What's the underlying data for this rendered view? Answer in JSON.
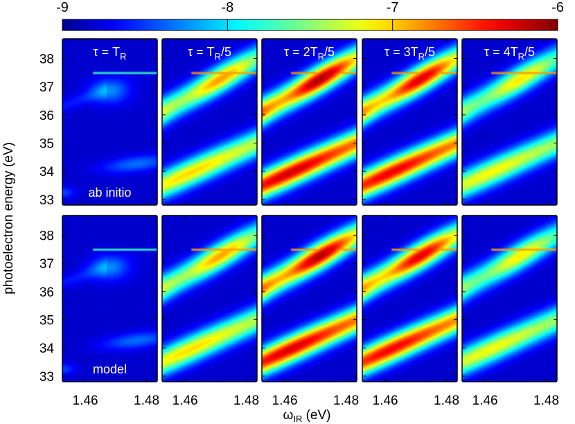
{
  "chart_data": {
    "type": "heatmap",
    "title": "",
    "xlabel_main": "ω",
    "xlabel_sub": "IR",
    "xlabel_unit": " (eV)",
    "ylabel": "photoelectron energy (eV)",
    "xlim": [
      1.4525,
      1.4835
    ],
    "ylim": [
      32.8,
      38.7
    ],
    "xticks": [
      1.46,
      1.48
    ],
    "xtick_labels": [
      "1.46",
      "1.48"
    ],
    "yticks": [
      33,
      34,
      35,
      36,
      37,
      38
    ],
    "ytick_labels": [
      "33",
      "34",
      "35",
      "36",
      "37",
      "38"
    ],
    "colorbar": {
      "range": [
        -9,
        -6
      ],
      "ticks": [
        -9,
        -8,
        -7,
        -6
      ],
      "tick_labels": [
        "-9",
        "-8",
        "-7",
        "-6"
      ],
      "colormap": "jet",
      "stops": [
        "#00008f",
        "#0000ff",
        "#00ffff",
        "#ffff00",
        "#ff0000",
        "#800000"
      ]
    },
    "row_labels": [
      "ab initio",
      "model"
    ],
    "columns": [
      {
        "title_pre": "τ = ",
        "title_main": "T",
        "title_sub": "R",
        "title_post": "",
        "intensity": 0.25,
        "lower_band_intensity": 0.18
      },
      {
        "title_pre": "τ = ",
        "title_main": "T",
        "title_sub": "R",
        "title_post": "/5",
        "intensity": 0.62,
        "lower_band_intensity": 0.6
      },
      {
        "title_pre": "τ = 2",
        "title_main": "T",
        "title_sub": "R",
        "title_post": "/5",
        "intensity": 0.85,
        "lower_band_intensity": 0.86
      },
      {
        "title_pre": "τ = 3",
        "title_main": "T",
        "title_sub": "R",
        "title_post": "/5",
        "intensity": 0.8,
        "lower_band_intensity": 0.83
      },
      {
        "title_pre": "τ = 4",
        "title_main": "T",
        "title_sub": "R",
        "title_post": "/5",
        "intensity": 0.55,
        "lower_band_intensity": 0.56
      }
    ],
    "features": {
      "upper_band": {
        "y_at_x_min": 36.1,
        "y_at_x_max": 38.0,
        "description": "sideband rising with ωIR"
      },
      "lower_band": {
        "y_at_x_min": 33.5,
        "y_at_x_max": 35.0,
        "description": "sideband rising with ωIR"
      },
      "resonance_line_y": 37.5
    }
  },
  "colors": {
    "background_low": "#00008f",
    "frame": "#000000"
  }
}
